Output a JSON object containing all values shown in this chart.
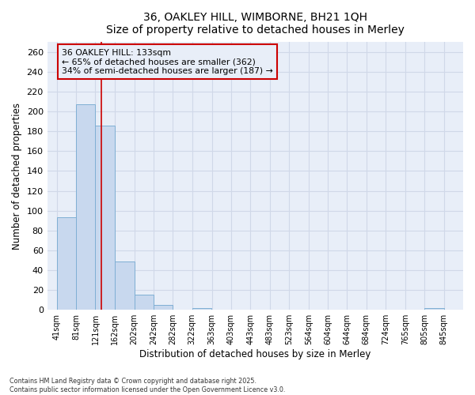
{
  "title_line1": "36, OAKLEY HILL, WIMBORNE, BH21 1QH",
  "title_line2": "Size of property relative to detached houses in Merley",
  "xlabel": "Distribution of detached houses by size in Merley",
  "ylabel": "Number of detached properties",
  "bar_left_edges": [
    41,
    81,
    121,
    162,
    202,
    242,
    282,
    322,
    363,
    403,
    443,
    483,
    523,
    564,
    604,
    644,
    684,
    724,
    765,
    805
  ],
  "bar_widths": [
    40,
    40,
    40,
    40,
    40,
    40,
    40,
    40,
    40,
    40,
    40,
    40,
    40,
    41,
    40,
    40,
    40,
    41,
    40,
    40
  ],
  "bar_heights": [
    93,
    207,
    186,
    49,
    15,
    5,
    0,
    2,
    0,
    0,
    0,
    0,
    0,
    0,
    0,
    0,
    0,
    0,
    0,
    2
  ],
  "bar_color": "#c8d8ee",
  "bar_edge_color": "#7fafd4",
  "vline_x": 133,
  "vline_color": "#cc0000",
  "annotation_text": "36 OAKLEY HILL: 133sqm\n← 65% of detached houses are smaller (362)\n34% of semi-detached houses are larger (187) →",
  "annotation_box_color": "#cc0000",
  "ylim": [
    0,
    270
  ],
  "yticks": [
    0,
    20,
    40,
    60,
    80,
    100,
    120,
    140,
    160,
    180,
    200,
    220,
    240,
    260
  ],
  "xtick_labels": [
    "41sqm",
    "81sqm",
    "121sqm",
    "162sqm",
    "202sqm",
    "242sqm",
    "282sqm",
    "322sqm",
    "363sqm",
    "403sqm",
    "443sqm",
    "483sqm",
    "523sqm",
    "564sqm",
    "604sqm",
    "644sqm",
    "684sqm",
    "724sqm",
    "765sqm",
    "805sqm",
    "845sqm"
  ],
  "xtick_positions": [
    41,
    81,
    121,
    162,
    202,
    242,
    282,
    322,
    363,
    403,
    443,
    483,
    523,
    564,
    604,
    644,
    684,
    724,
    765,
    805,
    845
  ],
  "grid_color": "#d0d8e8",
  "bg_color": "#ffffff",
  "plot_bg_color": "#e8eef8",
  "footnote1": "Contains HM Land Registry data © Crown copyright and database right 2025.",
  "footnote2": "Contains public sector information licensed under the Open Government Licence v3.0."
}
